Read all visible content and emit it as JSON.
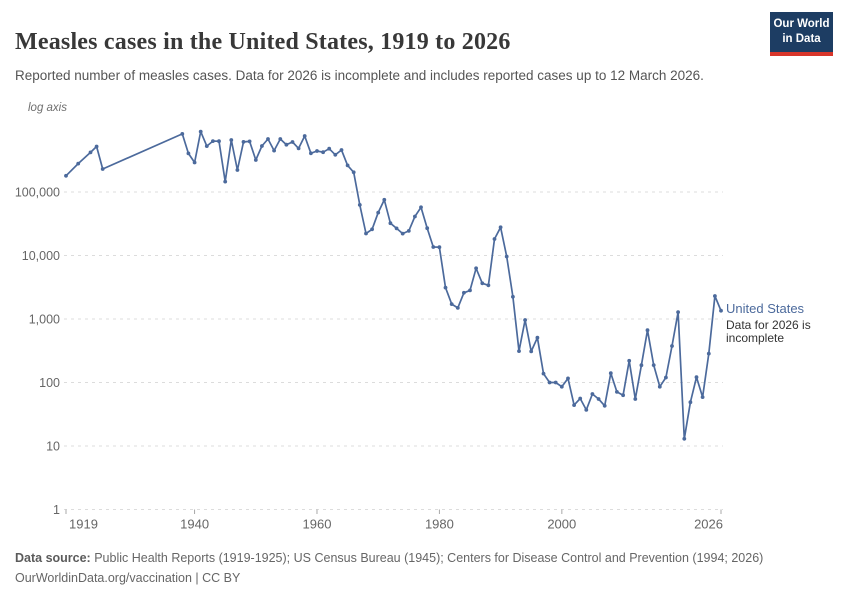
{
  "header": {
    "title": "Measles cases in the United States, 1919 to 2026",
    "subtitle": "Reported number of measles cases. Data for 2026 is incomplete and includes reported cases up to 12 March 2026.",
    "logo": {
      "line1": "Our World",
      "line2": "in Data"
    }
  },
  "chart_data": {
    "type": "line",
    "title": "Measles cases in the United States, 1919 to 2026",
    "axis_note": "log axis",
    "log_scale": true,
    "grid": true,
    "legend_position": "right-of-line-end",
    "x_range": [
      1919,
      2026
    ],
    "ylim": [
      1,
      1000000
    ],
    "x_ticks": [
      1919,
      1940,
      1960,
      1980,
      2000,
      2026
    ],
    "y_ticks": [
      {
        "value": 1,
        "label": "1"
      },
      {
        "value": 10,
        "label": "10"
      },
      {
        "value": 100,
        "label": "100"
      },
      {
        "value": 1000,
        "label": "1,000"
      },
      {
        "value": 10000,
        "label": "10,000"
      },
      {
        "value": 100000,
        "label": "100,000"
      }
    ],
    "series": [
      {
        "name": "United States",
        "x": [
          1919,
          1921,
          1923,
          1924,
          1925,
          1938,
          1939,
          1940,
          1941,
          1942,
          1943,
          1944,
          1945,
          1946,
          1947,
          1948,
          1949,
          1950,
          1951,
          1952,
          1953,
          1954,
          1955,
          1956,
          1957,
          1958,
          1959,
          1960,
          1961,
          1962,
          1963,
          1964,
          1965,
          1966,
          1967,
          1968,
          1969,
          1970,
          1971,
          1972,
          1973,
          1974,
          1975,
          1976,
          1977,
          1978,
          1979,
          1980,
          1981,
          1982,
          1983,
          1984,
          1985,
          1986,
          1987,
          1988,
          1989,
          1990,
          1991,
          1992,
          1993,
          1994,
          1995,
          1996,
          1997,
          1998,
          1999,
          2000,
          2001,
          2002,
          2003,
          2004,
          2005,
          2006,
          2007,
          2008,
          2009,
          2010,
          2011,
          2012,
          2013,
          2014,
          2015,
          2016,
          2017,
          2018,
          2019,
          2020,
          2021,
          2022,
          2023,
          2024,
          2025,
          2026
        ],
        "values": [
          180000,
          280000,
          420000,
          520000,
          230000,
          822811,
          404766,
          291162,
          894134,
          527347,
          633627,
          630291,
          146013,
          659843,
          222375,
          615104,
          625281,
          319124,
          530118,
          683077,
          449146,
          682720,
          555156,
          611936,
          486799,
          763094,
          406162,
          441703,
          423919,
          481530,
          385156,
          458083,
          261904,
          204136,
          62705,
          22231,
          25826,
          47351,
          75290,
          32275,
          26690,
          22094,
          24374,
          41126,
          57345,
          26871,
          13597,
          13506,
          3124,
          1714,
          1497,
          2587,
          2822,
          6282,
          3655,
          3396,
          18193,
          27786,
          9643,
          2237,
          312,
          963,
          309,
          508,
          138,
          100,
          100,
          86,
          116,
          44,
          56,
          37,
          66,
          55,
          43,
          140,
          71,
          63,
          220,
          55,
          187,
          667,
          188,
          86,
          120,
          375,
          1282,
          13,
          49,
          121,
          59,
          285,
          2300,
          1350
        ]
      }
    ],
    "annotation": {
      "entity": "United States",
      "note": "Data for 2026 is incomplete"
    }
  },
  "footer": {
    "source_label": "Data source:",
    "source_text": " Public Health Reports (1919-1925); US Census Bureau (1945); Centers for Disease Control and Prevention (1994; 2026)",
    "license_line": "OurWorldinData.org/vaccination | CC BY"
  },
  "colors": {
    "line": "#4c6a9c",
    "annotation_entity": "#4c6a9c",
    "grid": "#dcdcdc",
    "axis_text": "#666666",
    "tick_mark": "#a8a8a8",
    "logo_bg": "#1d3d63",
    "logo_accent": "#d8352a",
    "title_text": "#383838",
    "subtitle_text": "#555555"
  }
}
